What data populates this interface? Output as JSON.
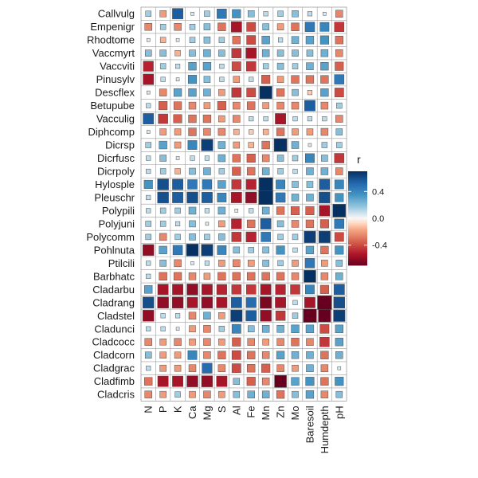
{
  "chart_data": {
    "type": "heatmap",
    "subtype": "correlation-square",
    "title": "",
    "xlabel": "",
    "ylabel": "",
    "rows": [
      "Callvulg",
      "Empenigr",
      "Rhodtome",
      "Vaccmyrt",
      "Vaccviti",
      "Pinusylv",
      "Descflex",
      "Betupube",
      "Vacculig",
      "Diphcomp",
      "Dicrsp",
      "Dicrfusc",
      "Dicrpoly",
      "Hylosple",
      "Pleuschr",
      "Polypili",
      "Polyjuni",
      "Polycomm",
      "Pohlnuta",
      "Ptilcili",
      "Barbhatc",
      "Cladarbu",
      "Cladrang",
      "Cladstel",
      "Cladunci",
      "Cladcocc",
      "Cladcorn",
      "Cladgrac",
      "Cladfimb",
      "Cladcris"
    ],
    "columns": [
      "N",
      "P",
      "K",
      "Ca",
      "Mg",
      "S",
      "Al",
      "Fe",
      "Mn",
      "Zn",
      "Mo",
      "Baresoil",
      "Humdepth",
      "pH"
    ],
    "values": [
      [
        0.15,
        -0.2,
        0.55,
        0.05,
        0.15,
        0.45,
        0.35,
        0.2,
        0.1,
        0.15,
        0.2,
        0.1,
        0.05,
        -0.25
      ],
      [
        -0.25,
        0.15,
        -0.25,
        0.15,
        0.2,
        -0.3,
        -0.55,
        -0.4,
        0.2,
        -0.2,
        -0.3,
        0.45,
        0.4,
        -0.45
      ],
      [
        0.05,
        -0.15,
        0.05,
        0.15,
        0.2,
        0.15,
        -0.3,
        -0.4,
        0.3,
        0.1,
        0.25,
        0.3,
        0.35,
        -0.3
      ],
      [
        0.2,
        0.2,
        -0.15,
        0.2,
        0.25,
        0.2,
        -0.45,
        -0.55,
        0.25,
        0.2,
        0.2,
        0.2,
        0.25,
        -0.25
      ],
      [
        -0.5,
        0.15,
        0.1,
        0.3,
        0.3,
        0.1,
        -0.4,
        -0.45,
        0.15,
        0.2,
        0.15,
        0.25,
        0.3,
        -0.35
      ],
      [
        -0.55,
        0.1,
        0.05,
        0.35,
        0.2,
        0.1,
        -0.2,
        0.1,
        -0.35,
        -0.2,
        -0.3,
        -0.3,
        -0.3,
        0.45
      ],
      [
        0.05,
        -0.25,
        0.3,
        0.3,
        0.25,
        -0.2,
        -0.45,
        -0.4,
        0.75,
        -0.3,
        0.2,
        -0.1,
        0.3,
        -0.4
      ],
      [
        0.1,
        -0.35,
        -0.3,
        -0.25,
        -0.2,
        -0.35,
        -0.25,
        -0.3,
        -0.2,
        -0.25,
        -0.25,
        0.55,
        -0.25,
        0.15
      ],
      [
        0.55,
        -0.45,
        -0.35,
        -0.3,
        -0.3,
        -0.2,
        -0.25,
        0.1,
        0.1,
        -0.55,
        0.1,
        0.1,
        0.1,
        -0.25
      ],
      [
        0.05,
        -0.2,
        -0.2,
        -0.3,
        -0.25,
        -0.25,
        -0.15,
        -0.1,
        -0.15,
        -0.3,
        -0.2,
        -0.2,
        -0.25,
        0.2
      ],
      [
        0.15,
        0.3,
        -0.2,
        0.4,
        0.65,
        0.25,
        -0.2,
        -0.15,
        -0.3,
        0.8,
        0.25,
        0.05,
        0.15,
        0.15
      ],
      [
        0.1,
        0.2,
        0.05,
        0.1,
        0.1,
        0.25,
        -0.3,
        -0.35,
        -0.25,
        0.2,
        0.15,
        0.4,
        0.2,
        -0.45
      ],
      [
        0.1,
        0.15,
        -0.15,
        0.2,
        0.25,
        0.15,
        -0.35,
        -0.3,
        0.25,
        0.15,
        0.1,
        0.25,
        0.25,
        -0.25
      ],
      [
        0.35,
        0.6,
        0.55,
        0.45,
        0.45,
        0.3,
        -0.45,
        -0.5,
        0.9,
        0.4,
        0.2,
        0.2,
        0.55,
        0.4
      ],
      [
        0.1,
        0.6,
        0.55,
        0.6,
        0.55,
        0.4,
        -0.55,
        -0.6,
        0.95,
        0.45,
        0.25,
        0.25,
        0.6,
        0.35
      ],
      [
        0.1,
        0.15,
        0.15,
        0.25,
        0.1,
        0.25,
        0.05,
        0.1,
        0.25,
        -0.3,
        -0.35,
        -0.35,
        -0.55,
        0.8
      ],
      [
        0.15,
        0.15,
        0.1,
        0.2,
        0.05,
        -0.2,
        -0.5,
        -0.3,
        0.55,
        0.2,
        -0.25,
        -0.3,
        -0.35,
        0.45
      ],
      [
        0.15,
        -0.25,
        0.15,
        0.2,
        0.15,
        0.2,
        -0.45,
        -0.5,
        0.45,
        0.15,
        0.15,
        0.65,
        0.65,
        -0.4
      ],
      [
        -0.6,
        0.3,
        0.45,
        0.7,
        0.65,
        0.4,
        0.2,
        0.15,
        0.2,
        0.35,
        0.1,
        0.3,
        -0.3,
        0.35
      ],
      [
        0.1,
        0.2,
        -0.25,
        0.05,
        0.1,
        -0.2,
        -0.25,
        -0.2,
        0.2,
        0.15,
        -0.2,
        0.45,
        -0.2,
        0.2
      ],
      [
        0.1,
        -0.3,
        -0.3,
        -0.25,
        -0.2,
        -0.3,
        -0.3,
        -0.3,
        -0.3,
        -0.3,
        -0.25,
        0.7,
        -0.25,
        0.25
      ],
      [
        0.3,
        -0.55,
        -0.55,
        -0.6,
        -0.55,
        -0.5,
        -0.45,
        -0.45,
        -0.55,
        -0.5,
        -0.45,
        0.4,
        -0.35,
        0.55
      ],
      [
        0.6,
        -0.6,
        -0.6,
        -0.55,
        -0.6,
        -0.55,
        0.55,
        0.5,
        -0.65,
        -0.55,
        0.1,
        -0.55,
        -0.95,
        0.6
      ],
      [
        -0.6,
        0.1,
        0.1,
        -0.25,
        0.25,
        -0.2,
        0.65,
        0.55,
        -0.6,
        -0.45,
        0.15,
        -0.85,
        -0.75,
        0.65
      ],
      [
        0.1,
        0.1,
        0.05,
        -0.2,
        -0.25,
        0.15,
        0.4,
        0.2,
        0.25,
        0.25,
        0.3,
        0.3,
        -0.4,
        0.3
      ],
      [
        -0.25,
        -0.2,
        -0.25,
        -0.2,
        -0.25,
        -0.2,
        -0.35,
        -0.25,
        -0.2,
        -0.25,
        -0.3,
        -0.25,
        -0.45,
        0.3
      ],
      [
        0.2,
        -0.2,
        -0.2,
        0.4,
        -0.25,
        -0.3,
        -0.4,
        -0.3,
        -0.25,
        0.3,
        0.25,
        0.25,
        -0.3,
        0.25
      ],
      [
        0.1,
        -0.2,
        -0.2,
        -0.25,
        0.5,
        -0.25,
        -0.4,
        -0.3,
        -0.35,
        -0.25,
        -0.2,
        0.25,
        -0.25,
        0.05
      ],
      [
        -0.3,
        -0.55,
        -0.55,
        -0.6,
        -0.6,
        -0.55,
        0.2,
        -0.35,
        -0.25,
        -0.7,
        0.3,
        0.35,
        -0.3,
        0.35
      ],
      [
        -0.25,
        -0.2,
        0.15,
        -0.2,
        -0.25,
        -0.2,
        0.2,
        0.25,
        0.25,
        -0.3,
        0.2,
        0.3,
        -0.25,
        0.2
      ]
    ],
    "legend": {
      "title": "r",
      "ticks": [
        0.4,
        0.0,
        -0.4
      ],
      "tick_labels": [
        "0.4",
        "0.0",
        "-0.4"
      ],
      "range": [
        -0.7,
        0.7
      ],
      "placement": "right"
    },
    "colors": {
      "low": "#67001f",
      "mid": "#f7f7f7",
      "high": "#053061",
      "gridline": "#9e9e9e",
      "square_border": "#4d4d4d"
    }
  }
}
